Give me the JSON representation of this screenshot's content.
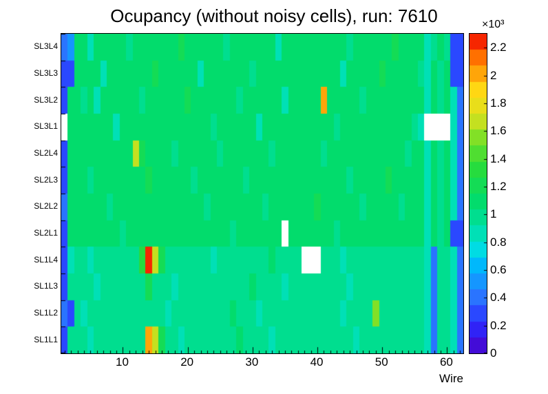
{
  "title": "Ocupancy (without noisy cells), run: 7610",
  "colorbar": {
    "exponent": "×10³",
    "tick_labels": [
      "0",
      "0.2",
      "0.4",
      "0.6",
      "0.8",
      "1",
      "1.2",
      "1.4",
      "1.6",
      "1.8",
      "2",
      "2.2"
    ],
    "tick_values": [
      0,
      200,
      400,
      600,
      800,
      1000,
      1200,
      1400,
      1600,
      1800,
      2000,
      2200
    ]
  },
  "chart_data": {
    "type": "heatmap",
    "title": "Ocupancy (without noisy cells), run: 7610",
    "xlabel": "Wire",
    "x_ticks": [
      10,
      20,
      30,
      40,
      50,
      60
    ],
    "x_tick_labels": [
      "10",
      "20",
      "30",
      "40",
      "50",
      "60"
    ],
    "x_range": [
      0.5,
      62.5
    ],
    "n_wires": 62,
    "zmin": 0,
    "zmax": 2300,
    "levels": 20,
    "empty_color": "#ffffff",
    "palette": [
      [
        0.0,
        "#4c00c8"
      ],
      [
        0.09,
        "#2a2aff"
      ],
      [
        0.18,
        "#2a78ff"
      ],
      [
        0.27,
        "#00b4ff"
      ],
      [
        0.33,
        "#00e0e0"
      ],
      [
        0.39,
        "#00e0a8"
      ],
      [
        0.47,
        "#00dc6e"
      ],
      [
        0.58,
        "#28dc3c"
      ],
      [
        0.66,
        "#6ee028"
      ],
      [
        0.74,
        "#d8e01e"
      ],
      [
        0.82,
        "#ffdc14"
      ],
      [
        0.87,
        "#ffaa0a"
      ],
      [
        0.92,
        "#ff7800"
      ],
      [
        0.96,
        "#ff3c00"
      ],
      [
        1.0,
        "#e60000"
      ]
    ],
    "rows": [
      {
        "label": "SL3L4",
        "values": [
          380,
          520,
          1050,
          1050,
          880,
          1050,
          1050,
          1050,
          1050,
          1050,
          980,
          1050,
          1050,
          1050,
          1050,
          1050,
          1050,
          1050,
          1150,
          1050,
          1050,
          1050,
          1050,
          1050,
          1050,
          980,
          1050,
          1050,
          1050,
          1050,
          1050,
          1050,
          1050,
          900,
          1050,
          1050,
          1050,
          1050,
          1050,
          1100,
          1050,
          1050,
          1050,
          1050,
          980,
          1050,
          1050,
          1050,
          1050,
          1050,
          1050,
          1150,
          1050,
          1050,
          1050,
          1050,
          860,
          1000,
          1050,
          1000,
          300,
          260
        ]
      },
      {
        "label": "SL3L3",
        "values": [
          260,
          300,
          1050,
          1050,
          1050,
          1050,
          900,
          1050,
          1050,
          1050,
          1050,
          1050,
          1050,
          1050,
          1150,
          1050,
          1050,
          1050,
          1050,
          1050,
          1050,
          880,
          1050,
          1050,
          1050,
          1050,
          1050,
          1050,
          1050,
          1000,
          1050,
          1050,
          1050,
          1050,
          1050,
          1050,
          1050,
          1100,
          1050,
          1050,
          1050,
          1050,
          1050,
          900,
          1050,
          1050,
          1050,
          1050,
          1050,
          1150,
          1050,
          1050,
          1050,
          1050,
          1050,
          1000,
          860,
          1050,
          1000,
          1050,
          300,
          260
        ]
      },
      {
        "label": "SL3L2",
        "values": [
          240,
          1050,
          1050,
          950,
          1050,
          880,
          1050,
          1050,
          1050,
          1050,
          1050,
          1050,
          1000,
          1050,
          1050,
          1050,
          1050,
          1050,
          1050,
          1150,
          1050,
          1050,
          1050,
          1050,
          1050,
          1050,
          1050,
          950,
          1050,
          1050,
          1050,
          1050,
          1050,
          1050,
          880,
          1050,
          1050,
          1050,
          1050,
          1050,
          2050,
          1050,
          1050,
          1050,
          1050,
          1050,
          1000,
          1050,
          1050,
          1050,
          1050,
          1050,
          1100,
          1050,
          1050,
          1050,
          860,
          1050,
          950,
          1050,
          820,
          420
        ]
      },
      {
        "label": "SL3L1",
        "values": [
          null,
          1050,
          1050,
          1050,
          1050,
          1050,
          1050,
          1050,
          900,
          1050,
          1050,
          1050,
          1050,
          1050,
          1050,
          1100,
          1050,
          1050,
          1050,
          1050,
          1050,
          1050,
          1050,
          950,
          1050,
          1050,
          1050,
          1050,
          1050,
          1050,
          880,
          1050,
          1050,
          1050,
          1050,
          1050,
          1050,
          1050,
          1050,
          1050,
          1050,
          1050,
          1000,
          1050,
          1050,
          1050,
          1050,
          1050,
          1100,
          1050,
          1050,
          1050,
          1050,
          1050,
          950,
          860,
          null,
          null,
          null,
          null,
          820,
          420
        ]
      },
      {
        "label": "SL2L4",
        "values": [
          230,
          1080,
          1080,
          1080,
          1080,
          1080,
          1080,
          1080,
          1080,
          1080,
          1080,
          1620,
          1250,
          1080,
          1080,
          1080,
          1080,
          950,
          1080,
          1080,
          1080,
          1080,
          1080,
          1080,
          1000,
          1080,
          1080,
          1080,
          1080,
          1080,
          1080,
          1080,
          950,
          1080,
          1080,
          1080,
          1080,
          1080,
          1080,
          1080,
          1000,
          1080,
          1080,
          1080,
          1080,
          1080,
          1080,
          1100,
          1080,
          1080,
          1080,
          1080,
          1080,
          950,
          1080,
          1080,
          860,
          1050,
          1000,
          1050,
          820,
          420
        ]
      },
      {
        "label": "SL2L3",
        "values": [
          240,
          1080,
          1080,
          1080,
          1000,
          1080,
          1080,
          1080,
          1080,
          1080,
          1080,
          1080,
          1080,
          1150,
          1080,
          1080,
          1080,
          1080,
          1080,
          1080,
          1000,
          1080,
          1080,
          1080,
          1080,
          1080,
          1080,
          1080,
          950,
          1080,
          1080,
          1080,
          1080,
          1080,
          1080,
          1080,
          1100,
          1080,
          1080,
          1080,
          1080,
          1080,
          1080,
          1080,
          1000,
          1080,
          1080,
          1080,
          1080,
          1080,
          1150,
          1080,
          1080,
          1080,
          1080,
          1080,
          860,
          1050,
          1000,
          1050,
          820,
          420
        ]
      },
      {
        "label": "SL2L2",
        "values": [
          420,
          1080,
          1080,
          1080,
          1080,
          1080,
          1080,
          1000,
          1080,
          1080,
          1080,
          1080,
          1080,
          1080,
          1080,
          1100,
          1080,
          1080,
          1080,
          1080,
          1080,
          1080,
          950,
          1080,
          1080,
          1080,
          1080,
          1080,
          1080,
          1080,
          1080,
          1000,
          1080,
          1080,
          1080,
          1080,
          1080,
          1080,
          1080,
          1150,
          1080,
          1080,
          1080,
          1080,
          1080,
          1080,
          1000,
          1080,
          1080,
          1080,
          1080,
          1080,
          950,
          1080,
          1080,
          1080,
          860,
          1050,
          1000,
          1050,
          820,
          420
        ]
      },
      {
        "label": "SL2L1",
        "values": [
          230,
          1080,
          1080,
          1080,
          1080,
          1080,
          1080,
          1080,
          1080,
          1000,
          1080,
          1080,
          1080,
          1080,
          1080,
          1080,
          1080,
          1080,
          1100,
          1080,
          1080,
          1080,
          1080,
          1080,
          1080,
          1080,
          950,
          1080,
          1080,
          1080,
          1080,
          1080,
          1080,
          1080,
          null,
          1080,
          1080,
          1080,
          1080,
          1080,
          1080,
          1080,
          1000,
          1080,
          1080,
          1080,
          1080,
          1080,
          1080,
          1100,
          1080,
          1080,
          1080,
          1080,
          1080,
          1080,
          860,
          1050,
          1000,
          1050,
          300,
          240
        ]
      },
      {
        "label": "SL1L4",
        "values": [
          250,
          850,
          1000,
          1000,
          880,
          1000,
          1000,
          1000,
          950,
          1000,
          1000,
          1000,
          1300,
          2290,
          1650,
          1200,
          1000,
          1000,
          1000,
          1000,
          1000,
          1000,
          1000,
          880,
          1000,
          1000,
          1000,
          1000,
          950,
          1000,
          1000,
          1000,
          1050,
          1000,
          1000,
          950,
          1000,
          null,
          null,
          null,
          1000,
          1000,
          1000,
          880,
          1000,
          1000,
          1000,
          1000,
          1000,
          1000,
          1000,
          1000,
          950,
          1000,
          1000,
          1000,
          860,
          420,
          1000,
          1000,
          820,
          420
        ]
      },
      {
        "label": "SL1L3",
        "values": [
          240,
          950,
          1000,
          1000,
          1000,
          880,
          1000,
          1000,
          1000,
          1000,
          950,
          1000,
          1000,
          1150,
          1000,
          1000,
          1000,
          880,
          1000,
          1000,
          1000,
          1000,
          1000,
          1000,
          950,
          1000,
          1000,
          1000,
          1000,
          1050,
          1000,
          1000,
          1000,
          1000,
          880,
          1000,
          1000,
          1000,
          950,
          1000,
          1000,
          1000,
          1000,
          1000,
          880,
          1000,
          1000,
          1000,
          1000,
          1000,
          1000,
          1000,
          1000,
          950,
          1000,
          1000,
          860,
          420,
          1000,
          950,
          820,
          420
        ]
      },
      {
        "label": "SL1L2",
        "values": [
          420,
          230,
          1000,
          880,
          1000,
          1000,
          1000,
          950,
          1000,
          1000,
          1000,
          1000,
          1000,
          1000,
          1000,
          1000,
          880,
          1000,
          1000,
          1000,
          1000,
          950,
          1000,
          1000,
          1000,
          1000,
          1050,
          1000,
          1000,
          1000,
          880,
          1000,
          1000,
          1000,
          1000,
          950,
          1000,
          1000,
          1000,
          1000,
          1000,
          1000,
          1000,
          880,
          1000,
          1000,
          1000,
          1000,
          1500,
          1000,
          1000,
          1000,
          950,
          1000,
          1000,
          1000,
          860,
          420,
          1000,
          1000,
          820,
          420
        ]
      },
      {
        "label": "SL1L1",
        "values": [
          250,
          950,
          1000,
          1000,
          880,
          1000,
          1000,
          1000,
          950,
          1000,
          1000,
          1000,
          1000,
          2050,
          1680,
          1250,
          1000,
          1000,
          880,
          1000,
          1000,
          1000,
          950,
          1000,
          1000,
          1000,
          1000,
          1050,
          1000,
          1000,
          1000,
          1000,
          880,
          1000,
          1000,
          1000,
          950,
          1000,
          1000,
          1000,
          1000,
          1000,
          1000,
          1000,
          1000,
          880,
          1000,
          1000,
          1000,
          1000,
          950,
          1000,
          1000,
          1000,
          1000,
          1000,
          860,
          420,
          1000,
          950,
          820,
          420
        ]
      }
    ]
  }
}
